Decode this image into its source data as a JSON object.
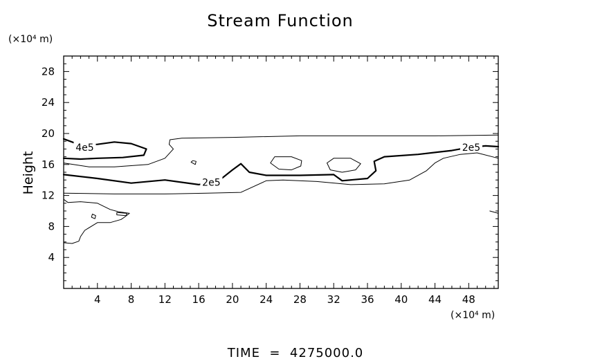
{
  "chart_data": {
    "type": "contour",
    "title": "Stream Function",
    "ylabel": "Height",
    "xunit": "(×10⁴ m)",
    "yunit": "(×10⁴ m)",
    "footer": "TIME  =  4275000.0",
    "xlim": [
      0,
      51.5
    ],
    "ylim": [
      0,
      30
    ],
    "xticks": [
      4,
      8,
      12,
      16,
      20,
      24,
      28,
      32,
      36,
      40,
      44,
      48
    ],
    "yticks": [
      4,
      8,
      12,
      16,
      20,
      24,
      28
    ],
    "xtick_labels": [
      "4",
      "8",
      "12",
      "16",
      "20",
      "24",
      "28",
      "32",
      "36",
      "40",
      "44",
      "48"
    ],
    "ytick_labels": [
      "4",
      "8",
      "12",
      "16",
      "20",
      "24",
      "28"
    ],
    "contour_labels": [
      {
        "text": "4e5",
        "x": 2.5,
        "y": 18.2
      },
      {
        "text": "2e5",
        "x": 17.5,
        "y": 13.7
      },
      {
        "text": "2e5",
        "x": 48.3,
        "y": 18.2
      }
    ],
    "contours": [
      {
        "level": "4e5",
        "bold": true,
        "x": [
          0,
          2,
          4,
          6,
          8,
          9.8,
          9.5,
          7,
          4,
          2,
          0
        ],
        "y": [
          19.3,
          18.5,
          18.6,
          18.9,
          18.7,
          18.0,
          17.2,
          16.9,
          16.8,
          16.7,
          16.8
        ]
      },
      {
        "level": "2e5",
        "bold": true,
        "x": [
          0,
          4,
          8,
          12,
          16,
          18.5,
          20,
          21,
          22,
          24,
          28,
          32,
          33,
          36,
          37,
          36.8,
          38,
          42,
          46,
          48,
          50,
          51.5
        ],
        "y": [
          14.7,
          14.2,
          13.6,
          14.0,
          13.4,
          14.0,
          15.3,
          16.1,
          15.0,
          14.6,
          14.6,
          14.7,
          13.9,
          14.2,
          15.2,
          16.4,
          17.0,
          17.3,
          17.8,
          18.2,
          18.4,
          18.3
        ]
      },
      {
        "level": "thin",
        "bold": false,
        "x": [
          0,
          6,
          12,
          17,
          21,
          24,
          26,
          30,
          34,
          38,
          41,
          43,
          44,
          45,
          47,
          49,
          51.5
        ],
        "y": [
          12.3,
          12.2,
          12.2,
          12.3,
          12.4,
          13.9,
          14.0,
          13.8,
          13.4,
          13.5,
          14.0,
          15.2,
          16.2,
          16.8,
          17.3,
          17.5,
          16.8
        ]
      },
      {
        "level": "thin",
        "bold": false,
        "x": [
          0,
          3,
          6,
          10,
          12,
          13,
          12.5,
          12.6,
          14,
          20,
          28,
          36,
          44,
          51.5
        ],
        "y": [
          16.2,
          15.7,
          15.7,
          16.0,
          16.8,
          18.0,
          18.6,
          19.2,
          19.4,
          19.5,
          19.7,
          19.7,
          19.7,
          19.8
        ]
      },
      {
        "level": "thin",
        "bold": false,
        "x": [
          0,
          0.5,
          2,
          4,
          5.5,
          6.5,
          7.8,
          7.2,
          6.8,
          5.5,
          4,
          2.5,
          2.0,
          1.8,
          1.0,
          0
        ],
        "y": [
          11.5,
          11.1,
          11.2,
          11.0,
          10.2,
          9.9,
          9.7,
          9.2,
          8.9,
          8.5,
          8.5,
          7.5,
          6.7,
          6.1,
          5.8,
          5.9
        ]
      },
      {
        "level": "thin",
        "bold": false,
        "closed": true,
        "x": [
          24.5,
          25,
          27,
          28.2,
          28.1,
          27,
          25.5,
          24.5
        ],
        "y": [
          16.2,
          17.0,
          17.0,
          16.5,
          15.8,
          15.3,
          15.4,
          16.2
        ]
      },
      {
        "level": "thin",
        "bold": false,
        "closed": true,
        "x": [
          31.2,
          32,
          34,
          35.2,
          34.6,
          33,
          31.6,
          31.2
        ],
        "y": [
          16.2,
          16.8,
          16.8,
          16.1,
          15.3,
          15.0,
          15.3,
          16.2
        ]
      },
      {
        "level": "thin",
        "bold": false,
        "closed": true,
        "x": [
          15.3,
          15.7,
          15.6,
          15.1,
          15.3
        ],
        "y": [
          16.5,
          16.4,
          16.0,
          16.3,
          16.5
        ]
      },
      {
        "level": "thin",
        "bold": false,
        "closed": true,
        "x": [
          3.4,
          3.8,
          3.7,
          3.3,
          3.4
        ],
        "y": [
          9.6,
          9.4,
          9.0,
          9.2,
          9.6
        ]
      },
      {
        "level": "thin",
        "bold": false,
        "closed": true,
        "x": [
          6.3,
          7.5,
          7.4,
          6.3,
          6.3
        ],
        "y": [
          9.8,
          9.7,
          9.4,
          9.5,
          9.8
        ]
      },
      {
        "level": "thin",
        "bold": false,
        "x": [
          50.5,
          51.5
        ],
        "y": [
          10.0,
          9.7
        ]
      }
    ]
  }
}
